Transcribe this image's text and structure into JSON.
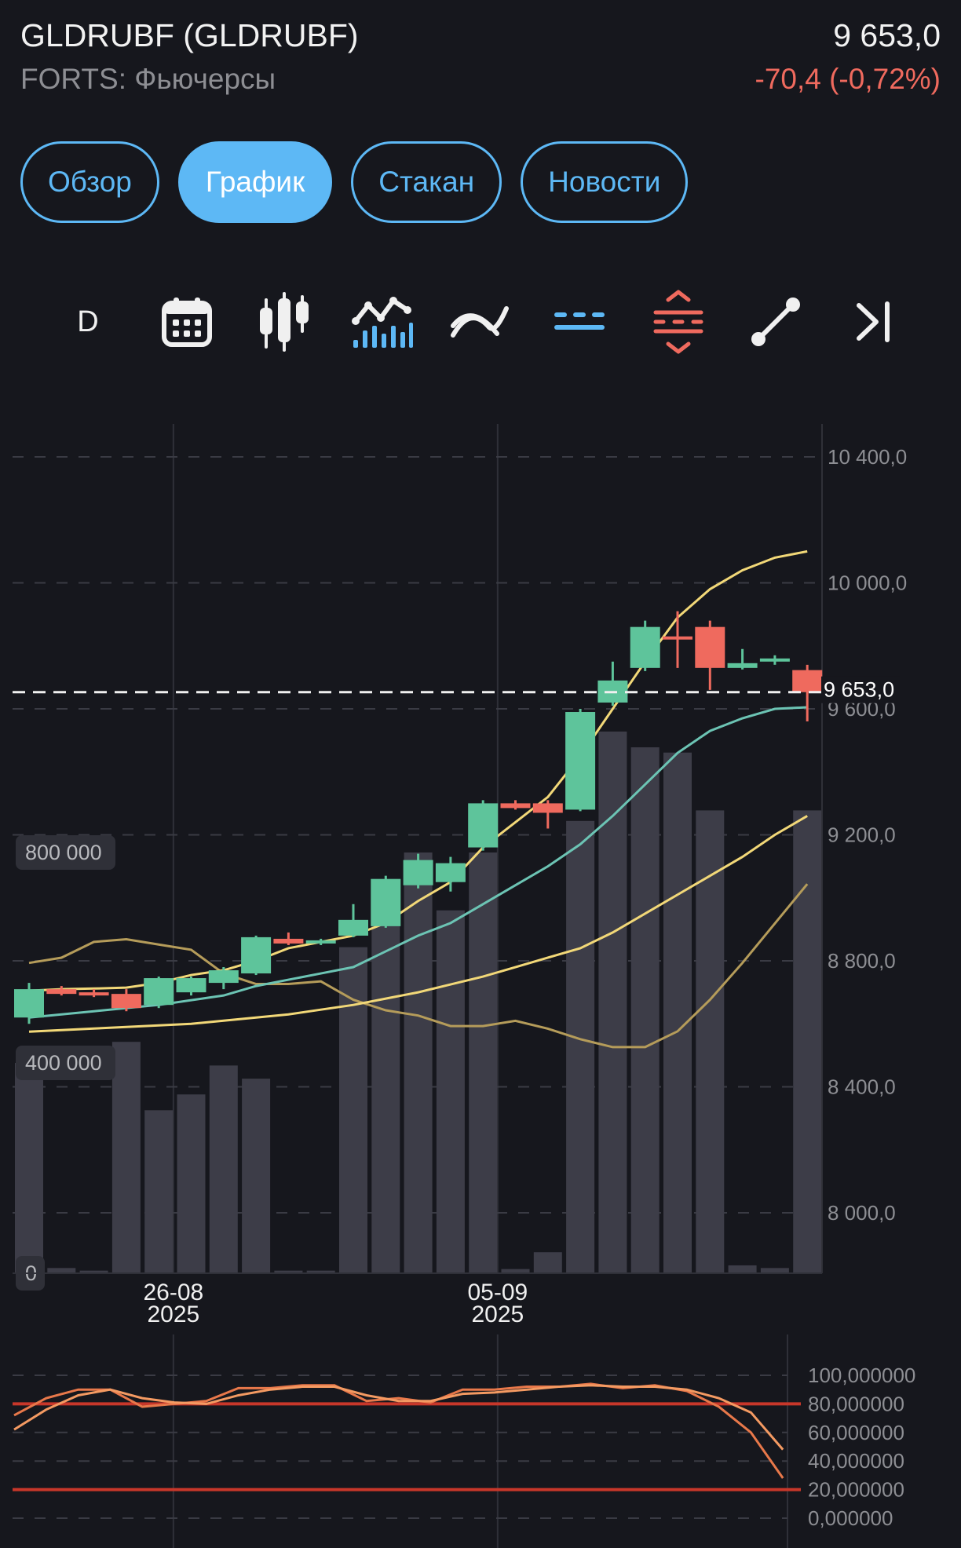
{
  "instrument": {
    "title": "GLDRUBF (GLDRUBF)",
    "market": "FORTS: Фьючерсы",
    "price": "9 653,0",
    "change": "-70,4 (-0,72%)"
  },
  "tabs": [
    {
      "label": "Обзор",
      "active": false
    },
    {
      "label": "График",
      "active": true
    },
    {
      "label": "Стакан",
      "active": false
    },
    {
      "label": "Новости",
      "active": false
    }
  ],
  "toolbar": {
    "interval": "D",
    "icons": [
      "calendar-icon",
      "candlestick-type-icon",
      "indicators-icon",
      "compare-icon",
      "horizontal-lines-icon",
      "price-levels-icon",
      "trend-line-tool-icon",
      "scroll-to-end-icon"
    ]
  },
  "colors": {
    "background": "#16171d",
    "accent": "#5db8f5",
    "up": "#5ec49b",
    "down": "#ef6a5e",
    "ma_fast": "#f2d878",
    "ma_mid": "#6cc4b4",
    "ma_slow": "#f2d878",
    "volume": "#3d3d48",
    "stoch_k": "#e8784a",
    "stoch_d": "#f49a62",
    "stoch_level": "#c8372a"
  },
  "chart_data": [
    {
      "type": "candlestick",
      "price_axis": [
        "10 400,0",
        "10 000,0",
        "9 600,0",
        "9 200,0",
        "8 800,0",
        "8 400,0",
        "8 000,0"
      ],
      "price_axis_values": [
        10400,
        10000,
        9600,
        9200,
        8800,
        8400,
        8000
      ],
      "ylim": [
        7800,
        10500
      ],
      "current_price_label": "9 653,0",
      "current_price": 9653,
      "x_labels": [
        {
          "date": "26-08",
          "year": "2025",
          "index": 4.5
        },
        {
          "date": "05-09",
          "year": "2025",
          "index": 14.5
        }
      ],
      "candles": [
        {
          "o": 8620,
          "h": 8730,
          "l": 8600,
          "c": 8710
        },
        {
          "o": 8710,
          "h": 8720,
          "l": 8690,
          "c": 8695
        },
        {
          "o": 8700,
          "h": 8710,
          "l": 8685,
          "c": 8690
        },
        {
          "o": 8695,
          "h": 8710,
          "l": 8640,
          "c": 8650
        },
        {
          "o": 8660,
          "h": 8750,
          "l": 8650,
          "c": 8745
        },
        {
          "o": 8700,
          "h": 8750,
          "l": 8690,
          "c": 8745
        },
        {
          "o": 8730,
          "h": 8780,
          "l": 8710,
          "c": 8770
        },
        {
          "o": 8760,
          "h": 8880,
          "l": 8755,
          "c": 8875
        },
        {
          "o": 8870,
          "h": 8890,
          "l": 8850,
          "c": 8855
        },
        {
          "o": 8855,
          "h": 8870,
          "l": 8850,
          "c": 8865
        },
        {
          "o": 8880,
          "h": 8980,
          "l": 8875,
          "c": 8930
        },
        {
          "o": 8910,
          "h": 9070,
          "l": 8905,
          "c": 9060
        },
        {
          "o": 9040,
          "h": 9140,
          "l": 9030,
          "c": 9120
        },
        {
          "o": 9050,
          "h": 9130,
          "l": 9020,
          "c": 9110
        },
        {
          "o": 9160,
          "h": 9310,
          "l": 9150,
          "c": 9300
        },
        {
          "o": 9300,
          "h": 9310,
          "l": 9280,
          "c": 9285
        },
        {
          "o": 9300,
          "h": 9310,
          "l": 9220,
          "c": 9270
        },
        {
          "o": 9280,
          "h": 9600,
          "l": 9275,
          "c": 9590
        },
        {
          "o": 9620,
          "h": 9750,
          "l": 9610,
          "c": 9690
        },
        {
          "o": 9730,
          "h": 9880,
          "l": 9720,
          "c": 9860
        },
        {
          "o": 9830,
          "h": 9910,
          "l": 9730,
          "c": 9820
        },
        {
          "o": 9860,
          "h": 9880,
          "l": 9660,
          "c": 9730
        },
        {
          "o": 9730,
          "h": 9790,
          "l": 9725,
          "c": 9745
        },
        {
          "o": 9750,
          "h": 9770,
          "l": 9740,
          "c": 9760
        },
        {
          "o": 9723,
          "h": 9740,
          "l": 9560,
          "c": 9653
        }
      ],
      "ma_fast": [
        8705,
        8710,
        8712,
        8715,
        8730,
        8755,
        8770,
        8800,
        8840,
        8860,
        8880,
        8920,
        8990,
        9050,
        9160,
        9240,
        9320,
        9450,
        9600,
        9750,
        9890,
        9980,
        10040,
        10080,
        10100
      ],
      "ma_mid": [
        8620,
        8630,
        8640,
        8650,
        8660,
        8675,
        8690,
        8720,
        8740,
        8760,
        8780,
        8830,
        8880,
        8920,
        8980,
        9040,
        9100,
        9170,
        9260,
        9360,
        9460,
        9530,
        9570,
        9600,
        9605
      ],
      "ma_slow": [
        8575,
        8580,
        8585,
        8590,
        8595,
        8600,
        8610,
        8620,
        8630,
        8645,
        8660,
        8680,
        8700,
        8725,
        8750,
        8780,
        8810,
        8840,
        8890,
        8950,
        9010,
        9070,
        9130,
        9200,
        9260
      ],
      "volume_axis": [
        "800 000",
        "400 000",
        "0"
      ],
      "volume_axis_values": [
        800000,
        400000,
        0
      ],
      "volume": [
        400000,
        10000,
        5000,
        440000,
        310000,
        340000,
        395000,
        370000,
        5000,
        5000,
        620000,
        700000,
        800000,
        690000,
        800000,
        8000,
        40000,
        860000,
        1030000,
        1000000,
        990000,
        880000,
        15000,
        10000,
        880000
      ],
      "volume_ma": [
        590000,
        600000,
        630000,
        635000,
        625000,
        615000,
        570000,
        550000,
        550000,
        555000,
        520000,
        500000,
        490000,
        470000,
        470000,
        480000,
        465000,
        445000,
        430000,
        430000,
        460000,
        520000,
        590000,
        665000,
        740000
      ]
    },
    {
      "type": "line",
      "name_hidden": true,
      "axis": [
        "100,000000",
        "80,000000",
        "60,000000",
        "40,000000",
        "20,000000",
        "0,000000"
      ],
      "axis_values": [
        100,
        80,
        60,
        40,
        20,
        0
      ],
      "levels": [
        80,
        20
      ],
      "series": [
        {
          "values": [
            72,
            84,
            90,
            90,
            78,
            80,
            82,
            91,
            91,
            93,
            93,
            82,
            84,
            81,
            90,
            90,
            92,
            92,
            94,
            91,
            93,
            89,
            78,
            60,
            28
          ]
        },
        {
          "values": [
            62,
            76,
            86,
            90,
            84,
            81,
            80,
            86,
            90,
            92,
            92,
            86,
            82,
            82,
            87,
            88,
            90,
            92,
            93,
            92,
            92,
            90,
            84,
            74,
            48
          ]
        }
      ]
    }
  ]
}
